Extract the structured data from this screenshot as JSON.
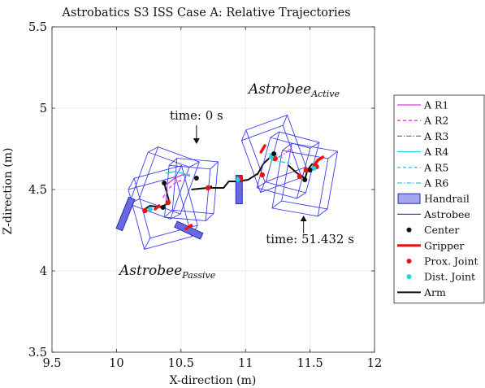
{
  "chart_data": {
    "type": "scatter",
    "title": "Astrobatics S3 ISS Case A: Relative Trajectories",
    "xlabel": "X-direction (m)",
    "ylabel": "Z-direction (m)",
    "xlim": [
      9.5,
      12
    ],
    "ylim": [
      3.5,
      5.5
    ],
    "xticks": [
      "9.5",
      "10",
      "10.5",
      "11",
      "11.5",
      "12"
    ],
    "yticks": [
      "3.5",
      "4",
      "4.5",
      "5",
      "5.5"
    ],
    "grid": true,
    "legend_position": "outside-right",
    "legend": [
      {
        "label": "A R1",
        "kind": "line",
        "color": "#e633d9",
        "dash": "solid"
      },
      {
        "label": "A R2",
        "kind": "line",
        "color": "#e633d9",
        "dash": "dashed"
      },
      {
        "label": "A R3",
        "kind": "line",
        "color": "#e633d9",
        "dash": "dashdot"
      },
      {
        "label": "A R4",
        "kind": "line",
        "color": "#22d3d9",
        "dash": "solid"
      },
      {
        "label": "A R5",
        "kind": "line",
        "color": "#22d3d9",
        "dash": "dashed"
      },
      {
        "label": "A R6",
        "kind": "line",
        "color": "#22d3d9",
        "dash": "dashdot"
      },
      {
        "label": "Handrail",
        "kind": "patch",
        "color": "#5b5bd6"
      },
      {
        "label": "Astrobee",
        "kind": "line",
        "color": "#3c3cf0",
        "dash": "solid"
      },
      {
        "label": "Center",
        "kind": "dot",
        "color": "#111111"
      },
      {
        "label": "Gripper",
        "kind": "line",
        "color": "#ee1111",
        "dash": "solid",
        "width": 3
      },
      {
        "label": "Prox. Joint",
        "kind": "dot",
        "color": "#ee1111"
      },
      {
        "label": "Dist. Joint",
        "kind": "dot",
        "color": "#22d3e6"
      },
      {
        "label": "Arm",
        "kind": "line",
        "color": "#111111",
        "dash": "solid",
        "width": 2
      }
    ],
    "annotations": [
      {
        "text": "time: 0 s",
        "x": 10.62,
        "y": 4.93
      },
      {
        "text": "time: 51.432 s",
        "x": 11.5,
        "y": 4.17
      }
    ],
    "labels": {
      "active": {
        "base": "Astrobee",
        "sub": "Active"
      },
      "passive": {
        "base": "Astrobee",
        "sub": "Passive"
      }
    },
    "astrobees": [
      {
        "name": "passive-t0",
        "cx": 10.37,
        "cz": 4.54,
        "half": 0.17,
        "angle": 20,
        "arm": [
          [
            10.37,
            4.54
          ],
          [
            10.41,
            4.42
          ],
          [
            10.34,
            4.39
          ]
        ]
      },
      {
        "name": "passive-t1",
        "cx": 10.36,
        "cz": 4.39,
        "half": 0.19,
        "angle": -15,
        "arm": [
          [
            10.36,
            4.39
          ],
          [
            10.26,
            4.4
          ],
          [
            10.22,
            4.38
          ]
        ]
      },
      {
        "name": "passive-t2",
        "cx": 10.58,
        "cz": 4.5,
        "half": 0.16,
        "angle": 5,
        "arm": [
          [
            10.58,
            4.5
          ],
          [
            10.7,
            4.51
          ],
          [
            10.74,
            4.52
          ]
        ]
      },
      {
        "name": "active-t0",
        "cx": 11.22,
        "cz": 4.72,
        "half": 0.17,
        "angle": -20,
        "arm": [
          [
            11.22,
            4.72
          ],
          [
            11.14,
            4.66
          ],
          [
            11.09,
            4.59
          ]
        ]
      },
      {
        "name": "active-t1",
        "cx": 11.33,
        "cz": 4.65,
        "half": 0.16,
        "angle": 15,
        "arm": [
          [
            11.33,
            4.65
          ],
          [
            11.4,
            4.6
          ],
          [
            11.46,
            4.57
          ]
        ]
      },
      {
        "name": "active-t2",
        "cx": 11.46,
        "cz": 4.56,
        "half": 0.18,
        "angle": 10,
        "arm": [
          [
            11.46,
            4.56
          ],
          [
            11.48,
            4.62
          ],
          [
            11.52,
            4.66
          ]
        ]
      }
    ],
    "handrails": [
      {
        "name": "handrail-left",
        "x": 10.07,
        "z": 4.35,
        "length": 0.26,
        "angle": 68
      },
      {
        "name": "handrail-bottom",
        "x": 10.56,
        "z": 4.25,
        "length": 0.22,
        "angle": -25
      },
      {
        "name": "handrail-middle",
        "x": 10.95,
        "z": 4.5,
        "length": 0.22,
        "angle": 90
      }
    ],
    "grippers": [
      [
        [
          10.3,
          4.38
        ],
        [
          10.33,
          4.4
        ]
      ],
      [
        [
          10.54,
          4.26
        ],
        [
          10.58,
          4.28
        ]
      ],
      [
        [
          10.93,
          4.56
        ],
        [
          10.97,
          4.56
        ]
      ],
      [
        [
          11.12,
          4.73
        ],
        [
          11.15,
          4.77
        ]
      ],
      [
        [
          11.52,
          4.63
        ],
        [
          11.56,
          4.68
        ]
      ],
      [
        [
          11.56,
          4.68
        ],
        [
          11.6,
          4.7
        ]
      ]
    ],
    "arm_chain": [
      [
        10.72,
        4.51
      ],
      [
        10.83,
        4.51
      ],
      [
        10.87,
        4.55
      ],
      [
        10.94,
        4.55
      ],
      [
        11.02,
        4.56
      ],
      [
        11.1,
        4.6
      ]
    ],
    "centers": [
      [
        10.37,
        4.54
      ],
      [
        10.36,
        4.39
      ],
      [
        10.62,
        4.57
      ],
      [
        11.22,
        4.72
      ],
      [
        11.46,
        4.56
      ],
      [
        11.5,
        4.62
      ]
    ],
    "prox_joints": [
      [
        10.4,
        4.42
      ],
      [
        10.22,
        4.37
      ],
      [
        10.71,
        4.51
      ],
      [
        10.96,
        4.57
      ],
      [
        11.13,
        4.59
      ],
      [
        11.23,
        4.69
      ],
      [
        11.42,
        4.58
      ],
      [
        11.55,
        4.64
      ],
      [
        11.47,
        4.62
      ]
    ],
    "dist_joints": [
      [
        10.26,
        4.38
      ],
      [
        10.94,
        4.56
      ],
      [
        11.2,
        4.7
      ],
      [
        11.53,
        4.63
      ]
    ],
    "trajectories": [
      {
        "name": "A R1",
        "color": "#e633d9",
        "dash": "solid",
        "points": [
          [
            10.39,
            4.53
          ],
          [
            10.45,
            4.57
          ],
          [
            10.51,
            4.59
          ],
          [
            10.57,
            4.59
          ]
        ]
      },
      {
        "name": "A R2",
        "color": "#e633d9",
        "dash": "dashed",
        "points": [
          [
            10.36,
            4.45
          ],
          [
            10.41,
            4.51
          ],
          [
            10.47,
            4.55
          ],
          [
            10.53,
            4.56
          ]
        ]
      },
      {
        "name": "A R3",
        "color": "#e633d9",
        "dash": "dashdot",
        "points": [
          [
            11.18,
            4.69
          ],
          [
            11.26,
            4.7
          ],
          [
            11.32,
            4.73
          ],
          [
            11.36,
            4.76
          ]
        ]
      },
      {
        "name": "A R4",
        "color": "#22d3d9",
        "dash": "solid",
        "points": [
          [
            10.38,
            4.6
          ],
          [
            10.45,
            4.61
          ],
          [
            10.52,
            4.6
          ],
          [
            10.57,
            4.58
          ]
        ]
      },
      {
        "name": "A R5",
        "color": "#22d3d9",
        "dash": "dashed",
        "points": [
          [
            11.18,
            4.72
          ],
          [
            11.25,
            4.71
          ],
          [
            11.3,
            4.69
          ]
        ]
      },
      {
        "name": "A R6",
        "color": "#22d3d9",
        "dash": "dashdot",
        "points": [
          [
            11.2,
            4.68
          ],
          [
            11.28,
            4.67
          ],
          [
            11.35,
            4.66
          ]
        ]
      }
    ]
  }
}
